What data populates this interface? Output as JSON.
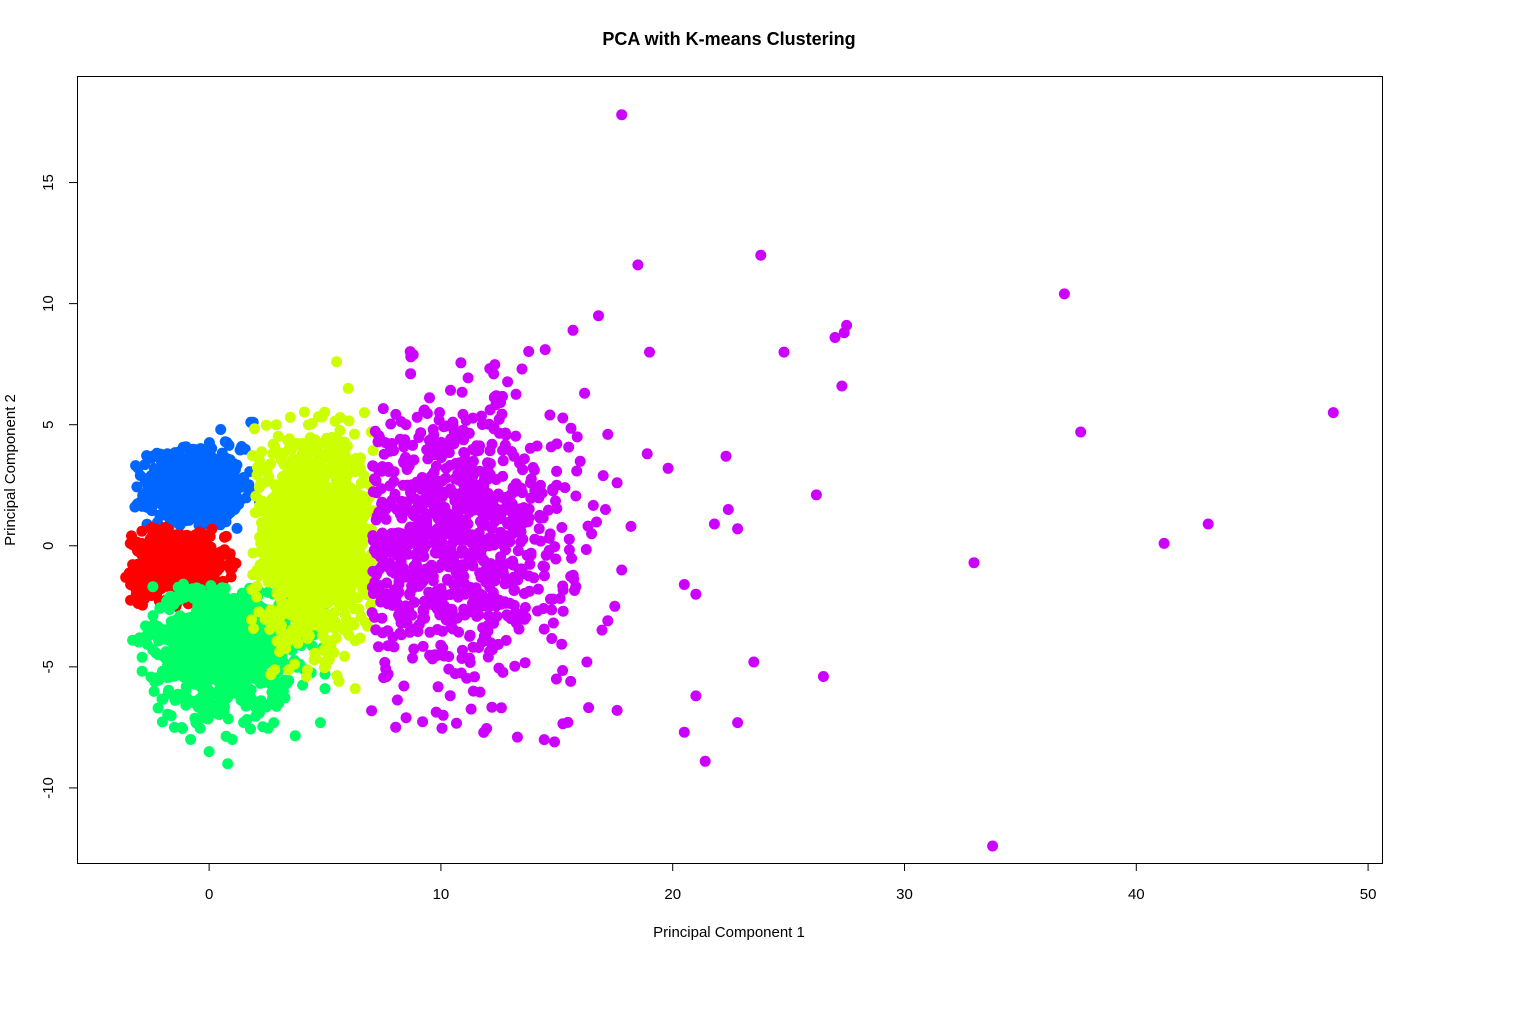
{
  "chart_data": {
    "type": "scatter",
    "title": "PCA with K-means Clustering",
    "xlabel": "Principal Component 1",
    "ylabel": "Principal Component 2",
    "xlim": [
      -5.7,
      50.6
    ],
    "ylim": [
      -13.1,
      19.4
    ],
    "xticks": [
      0,
      10,
      20,
      30,
      40,
      50
    ],
    "yticks": [
      -10,
      -5,
      0,
      5,
      10,
      15
    ],
    "grid": false,
    "legend": "none",
    "series": [
      {
        "color": "#0066FF",
        "cluster": {
          "cx": -0.6,
          "cy": 2.4,
          "sx": 1.0,
          "sy": 0.8,
          "xmin": -3.3,
          "xmax": 2.2,
          "ymin": 0.7,
          "ymax": 4.3,
          "n": 650
        },
        "points": [
          [
            0.5,
            4.8
          ],
          [
            1.8,
            5.1
          ],
          [
            1.9,
            5.1
          ],
          [
            0.7,
            4.3
          ],
          [
            -1.8,
            3.8
          ],
          [
            -2.5,
            2.9
          ],
          [
            -3.2,
            1.6
          ],
          [
            1.4,
            4.1
          ]
        ]
      },
      {
        "color": "#FF0000",
        "cluster": {
          "cx": -1.3,
          "cy": -0.8,
          "sx": 1.0,
          "sy": 0.75,
          "xmin": -3.5,
          "xmax": 1.3,
          "ymin": -2.5,
          "ymax": 0.8,
          "n": 600
        },
        "points": [
          [
            -3.6,
            -1.3
          ],
          [
            -3.4,
            0.1
          ],
          [
            -2.8,
            -2.2
          ],
          [
            -2.9,
            0.6
          ]
        ]
      },
      {
        "color": "#00FF66",
        "cluster": {
          "cx": 0.6,
          "cy": -4.1,
          "sx": 1.5,
          "sy": 1.3,
          "xmin": -3.3,
          "xmax": 5.2,
          "ymin": -8.0,
          "ymax": -1.5,
          "n": 900
        },
        "points": [
          [
            0.8,
            -9.0
          ],
          [
            0.0,
            -8.5
          ],
          [
            -0.8,
            -8.0
          ],
          [
            1.0,
            -8.0
          ],
          [
            4.8,
            -7.3
          ],
          [
            -1.5,
            -7.5
          ],
          [
            -3.0,
            -3.8
          ],
          [
            -3.3,
            -3.9
          ],
          [
            -2.2,
            -6.7
          ],
          [
            3.0,
            -6.5
          ],
          [
            5.0,
            -5.9
          ],
          [
            5.0,
            -5.3
          ]
        ]
      },
      {
        "color": "#CCFF00",
        "cluster": {
          "cx": 4.5,
          "cy": 0.2,
          "sx": 1.3,
          "sy": 2.0,
          "xmin": 1.8,
          "xmax": 7.1,
          "ymin": -5.9,
          "ymax": 5.6,
          "n": 1400
        },
        "points": [
          [
            5.5,
            7.6
          ],
          [
            6.0,
            6.5
          ],
          [
            3.5,
            5.3
          ],
          [
            6.7,
            5.5
          ],
          [
            6.3,
            -5.9
          ],
          [
            5.6,
            -5.6
          ],
          [
            2.9,
            5.0
          ]
        ]
      },
      {
        "color": "#CC00FF",
        "cluster": {
          "cx": 10.3,
          "cy": 0.3,
          "sx": 2.6,
          "sy": 2.8,
          "xmin": 7.0,
          "xmax": 17.5,
          "ymin": -8.2,
          "ymax": 8.2,
          "n": 900
        },
        "points": [
          [
            17.8,
            17.8
          ],
          [
            18.5,
            11.6
          ],
          [
            23.8,
            12.0
          ],
          [
            36.9,
            10.4
          ],
          [
            16.8,
            9.5
          ],
          [
            27.5,
            9.1
          ],
          [
            27.0,
            8.6
          ],
          [
            27.4,
            8.8
          ],
          [
            15.7,
            8.9
          ],
          [
            19.0,
            8.0
          ],
          [
            24.8,
            8.0
          ],
          [
            27.3,
            6.6
          ],
          [
            48.5,
            5.5
          ],
          [
            37.6,
            4.7
          ],
          [
            17.2,
            4.6
          ],
          [
            22.3,
            3.7
          ],
          [
            18.9,
            3.8
          ],
          [
            19.8,
            3.2
          ],
          [
            26.2,
            2.1
          ],
          [
            22.4,
            1.5
          ],
          [
            21.8,
            0.9
          ],
          [
            22.8,
            0.7
          ],
          [
            43.1,
            0.9
          ],
          [
            41.2,
            0.1
          ],
          [
            33.0,
            -0.7
          ],
          [
            20.5,
            -1.6
          ],
          [
            21.0,
            -2.0
          ],
          [
            23.5,
            -4.8
          ],
          [
            26.5,
            -5.4
          ],
          [
            21.0,
            -6.2
          ],
          [
            17.6,
            -6.8
          ],
          [
            22.8,
            -7.3
          ],
          [
            20.5,
            -7.7
          ],
          [
            21.4,
            -8.9
          ],
          [
            33.8,
            -12.4
          ],
          [
            16.2,
            6.3
          ],
          [
            14.7,
            5.4
          ],
          [
            14.5,
            8.1
          ],
          [
            13.5,
            7.3
          ],
          [
            8.7,
            7.8
          ],
          [
            14.9,
            -8.1
          ],
          [
            13.3,
            -7.9
          ],
          [
            8.5,
            -7.1
          ],
          [
            10.1,
            -7.0
          ],
          [
            11.4,
            -6.0
          ],
          [
            15.6,
            -5.6
          ],
          [
            16.3,
            -4.8
          ],
          [
            17.2,
            -3.1
          ],
          [
            17.5,
            -2.5
          ],
          [
            17.8,
            -1.0
          ],
          [
            17.1,
            1.5
          ],
          [
            17.6,
            2.6
          ],
          [
            16.5,
            0.5
          ],
          [
            18.2,
            0.8
          ],
          [
            17.0,
            2.9
          ]
        ]
      }
    ]
  }
}
